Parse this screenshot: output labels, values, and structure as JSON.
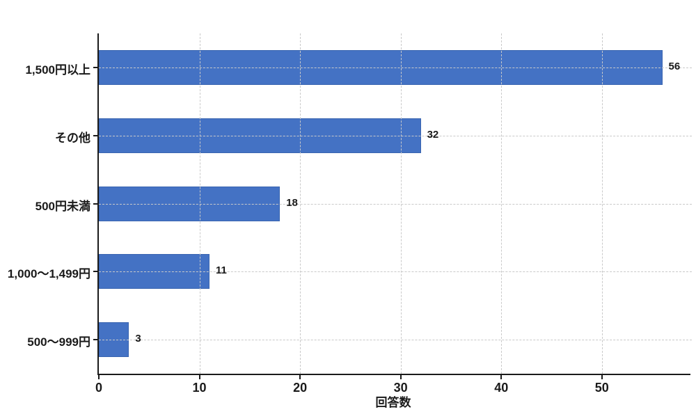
{
  "chart_data": {
    "type": "bar",
    "orientation": "horizontal",
    "title": "",
    "xlabel": "回答数",
    "ylabel": "",
    "categories": [
      "1,500円以上",
      "その他",
      "500円未満",
      "1,000〜1,499円",
      "500〜999円"
    ],
    "values": [
      56,
      32,
      18,
      11,
      3
    ],
    "value_labels": [
      "56",
      "32",
      "18",
      "11",
      "3"
    ],
    "xticks": [
      0,
      10,
      20,
      30,
      40,
      50
    ],
    "xtick_labels": [
      "0",
      "10",
      "20",
      "30",
      "40",
      "50"
    ],
    "xlim": [
      0,
      58.8
    ],
    "grid": true,
    "legend": false,
    "colors": {
      "bar_fill": "#4472c4",
      "bar_border": "#3a65b0",
      "grid_line": "#c9c9c9",
      "axis_line": "#1a1a1a",
      "text": "#1a1a1a",
      "background": "#ffffff"
    }
  }
}
